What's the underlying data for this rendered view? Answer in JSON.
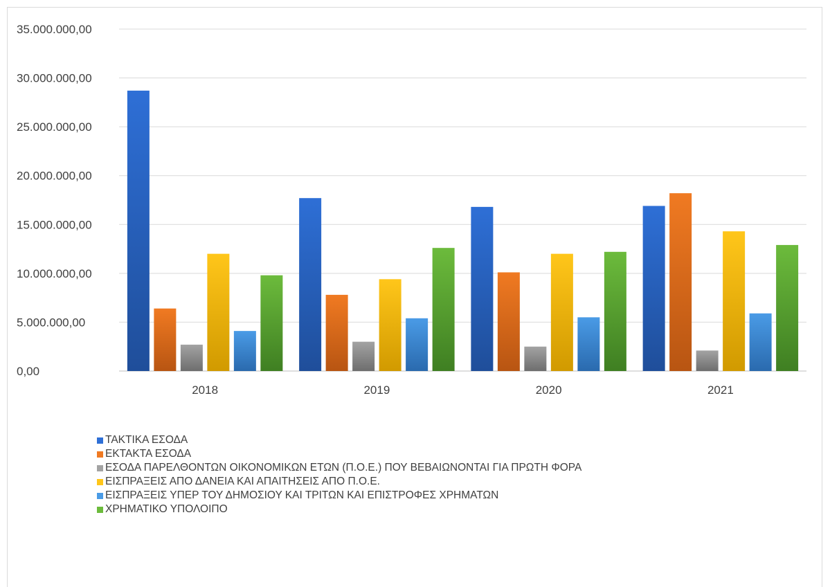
{
  "chart_data": {
    "type": "bar",
    "categories": [
      "2018",
      "2019",
      "2020",
      "2021"
    ],
    "ylim": [
      0,
      35000000
    ],
    "yticks": [
      {
        "value": 0,
        "label": "0,00"
      },
      {
        "value": 5000000,
        "label": "5.000.000,00"
      },
      {
        "value": 10000000,
        "label": "10.000.000,00"
      },
      {
        "value": 15000000,
        "label": "15.000.000,00"
      },
      {
        "value": 20000000,
        "label": "20.000.000,00"
      },
      {
        "value": 25000000,
        "label": "25.000.000,00"
      },
      {
        "value": 30000000,
        "label": "30.000.000,00"
      },
      {
        "value": 35000000,
        "label": "35.000.000,00"
      }
    ],
    "grid": true,
    "legend_position": "bottom-left",
    "series": [
      {
        "name": "ΤΑΚΤΙΚΑ ΕΣΟΔΑ",
        "color": "#2e6fd6",
        "color_dark": "#1f4e9a",
        "values": [
          28700000,
          17700000,
          16800000,
          16900000
        ]
      },
      {
        "name": "ΕΚΤΑΚΤΑ ΕΣΟΔΑ",
        "color": "#f07a22",
        "color_dark": "#b85512",
        "values": [
          6400000,
          7800000,
          10100000,
          18200000
        ]
      },
      {
        "name": "ΕΣΟΔΑ ΠΑΡΕΛΘΟΝΤΩΝ ΟΙΚΟΝΟΜΙΚΩΝ ΕΤΩΝ (Π.Ο.Ε.) ΠΟΥ ΒΕΒΑΙΩΝΟΝΤΑΙ ΓΙΑ ΠΡΩΤΗ ΦΟΡΑ",
        "color": "#a3a3a3",
        "color_dark": "#6e6e6e",
        "values": [
          2700000,
          3000000,
          2500000,
          2100000
        ]
      },
      {
        "name": "ΕΙΣΠΡΑΞΕΙΣ ΑΠΟ ΔΑΝΕΙΑ ΚΑΙ ΑΠΑΙΤΗΣΕΙΣ ΑΠΟ Π.Ο.Ε.",
        "color": "#ffc61a",
        "color_dark": "#d19a00",
        "values": [
          12000000,
          9400000,
          12000000,
          14300000
        ]
      },
      {
        "name": "ΕΙΣΠΡΑΞΕΙΣ ΥΠΕΡ ΤΟΥ ΔΗΜΟΣΙΟΥ ΚΑΙ ΤΡΙΤΩΝ ΚΑΙ ΕΠΙΣΤΡΟΦΕΣ ΧΡΗΜΑΤΩΝ",
        "color": "#4a9be6",
        "color_dark": "#2a6aae",
        "values": [
          4100000,
          5400000,
          5500000,
          5900000
        ]
      },
      {
        "name": "ΧΡΗΜΑΤΙΚΟ ΥΠΟΛΟΙΠΟ",
        "color": "#6cbb3c",
        "color_dark": "#3f7f22",
        "values": [
          9800000,
          12600000,
          12200000,
          12900000
        ]
      }
    ]
  }
}
